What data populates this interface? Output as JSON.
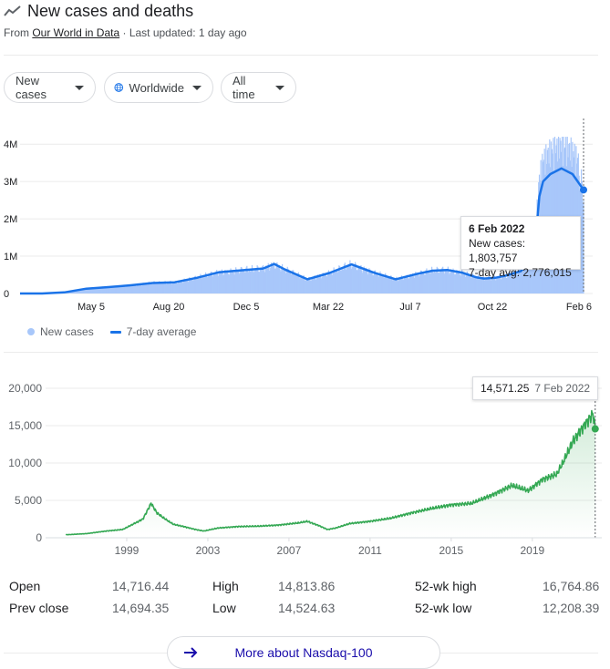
{
  "header": {
    "title": "New cases and deaths",
    "from_prefix": "From ",
    "source_link": "Our World in Data",
    "updated": " · Last updated: 1 day ago"
  },
  "filters": {
    "metric": "New cases",
    "region": "Worldwide",
    "range": "All time"
  },
  "legend": {
    "bars": "New cases",
    "line": "7-day average"
  },
  "tooltip_cases": {
    "date": "6 Feb 2022",
    "new_cases": "New cases: 1,803,757",
    "avg": "7-day avg: 2,776,015"
  },
  "tooltip_nasdaq": {
    "value": "14,571.25",
    "date": "7 Feb 2022"
  },
  "stats": {
    "open_label": "Open",
    "open": "14,716.44",
    "high_label": "High",
    "high": "14,813.86",
    "wk_high_label": "52-wk high",
    "wk_high": "16,764.86",
    "prev_label": "Prev close",
    "prev": "14,694.35",
    "low_label": "Low",
    "low": "14,524.63",
    "wk_low_label": "52-wk low",
    "wk_low": "12,208.39"
  },
  "more_button": "More about Nasdaq-100",
  "colors": {
    "cases_bar": "#a8c7fa",
    "cases_line": "#1a73e8",
    "nasdaq_line": "#34a853"
  },
  "chart_data": [
    {
      "type": "line",
      "series": [
        {
          "name": "7-day average",
          "x": [
            0,
            30,
            60,
            90,
            120,
            150,
            180,
            210,
            240,
            270,
            300,
            330,
            345,
            360,
            390,
            420,
            450,
            480,
            510,
            540,
            560,
            580,
            600,
            620,
            630,
            645,
            660,
            680,
            692,
            700,
            705,
            710,
            720,
            735,
            750,
            765
          ],
          "values": [
            0,
            0,
            30000,
            130000,
            170000,
            220000,
            280000,
            300000,
            420000,
            570000,
            620000,
            670000,
            790000,
            640000,
            380000,
            550000,
            780000,
            560000,
            380000,
            530000,
            610000,
            630000,
            560000,
            430000,
            400000,
            420000,
            480000,
            600000,
            800000,
            1500000,
            2600000,
            3000000,
            3200000,
            3350000,
            3200000,
            2776015
          ]
        }
      ],
      "bars_approx_peak": 4200000,
      "x_ticks": [
        "May 5",
        "Aug 20",
        "Dec 5",
        "Mar 22",
        "Jul 7",
        "Oct 22",
        "Feb 6"
      ],
      "y_ticks": [
        "0",
        "1M",
        "2M",
        "3M",
        "4M"
      ],
      "ylim": [
        0,
        4200000
      ],
      "legend": [
        "New cases",
        "7-day average"
      ]
    },
    {
      "type": "area",
      "series": [
        {
          "x": [
            1996.0,
            1997.0,
            1998.0,
            1998.8,
            1999.3,
            1999.8,
            2000.2,
            2000.5,
            2000.9,
            2001.3,
            2001.8,
            2002.4,
            2002.8,
            2003.5,
            2004.5,
            2005.5,
            2006.5,
            2007.5,
            2007.9,
            2008.5,
            2008.9,
            2009.3,
            2010.0,
            2011.0,
            2012.0,
            2013.0,
            2014.0,
            2015.0,
            2016.0,
            2017.0,
            2018.0,
            2018.8,
            2019.5,
            2020.2,
            2020.5,
            2021.0,
            2021.5,
            2022.0,
            2022.1
          ],
          "values": [
            400,
            550,
            900,
            1100,
            1800,
            2500,
            4600,
            3300,
            2500,
            1800,
            1500,
            1100,
            900,
            1300,
            1500,
            1550,
            1700,
            2000,
            2200,
            1600,
            1100,
            1300,
            1900,
            2200,
            2600,
            3300,
            3900,
            4400,
            4600,
            5700,
            7000,
            6300,
            7800,
            8500,
            10000,
            12900,
            14800,
            16600,
            14571
          ]
        }
      ],
      "x_ticks": [
        "1999",
        "2003",
        "2007",
        "2011",
        "2015",
        "2019"
      ],
      "y_ticks": [
        "0",
        "5,000",
        "10,000",
        "15,000",
        "20,000"
      ],
      "ylim": [
        0,
        20000
      ]
    }
  ]
}
